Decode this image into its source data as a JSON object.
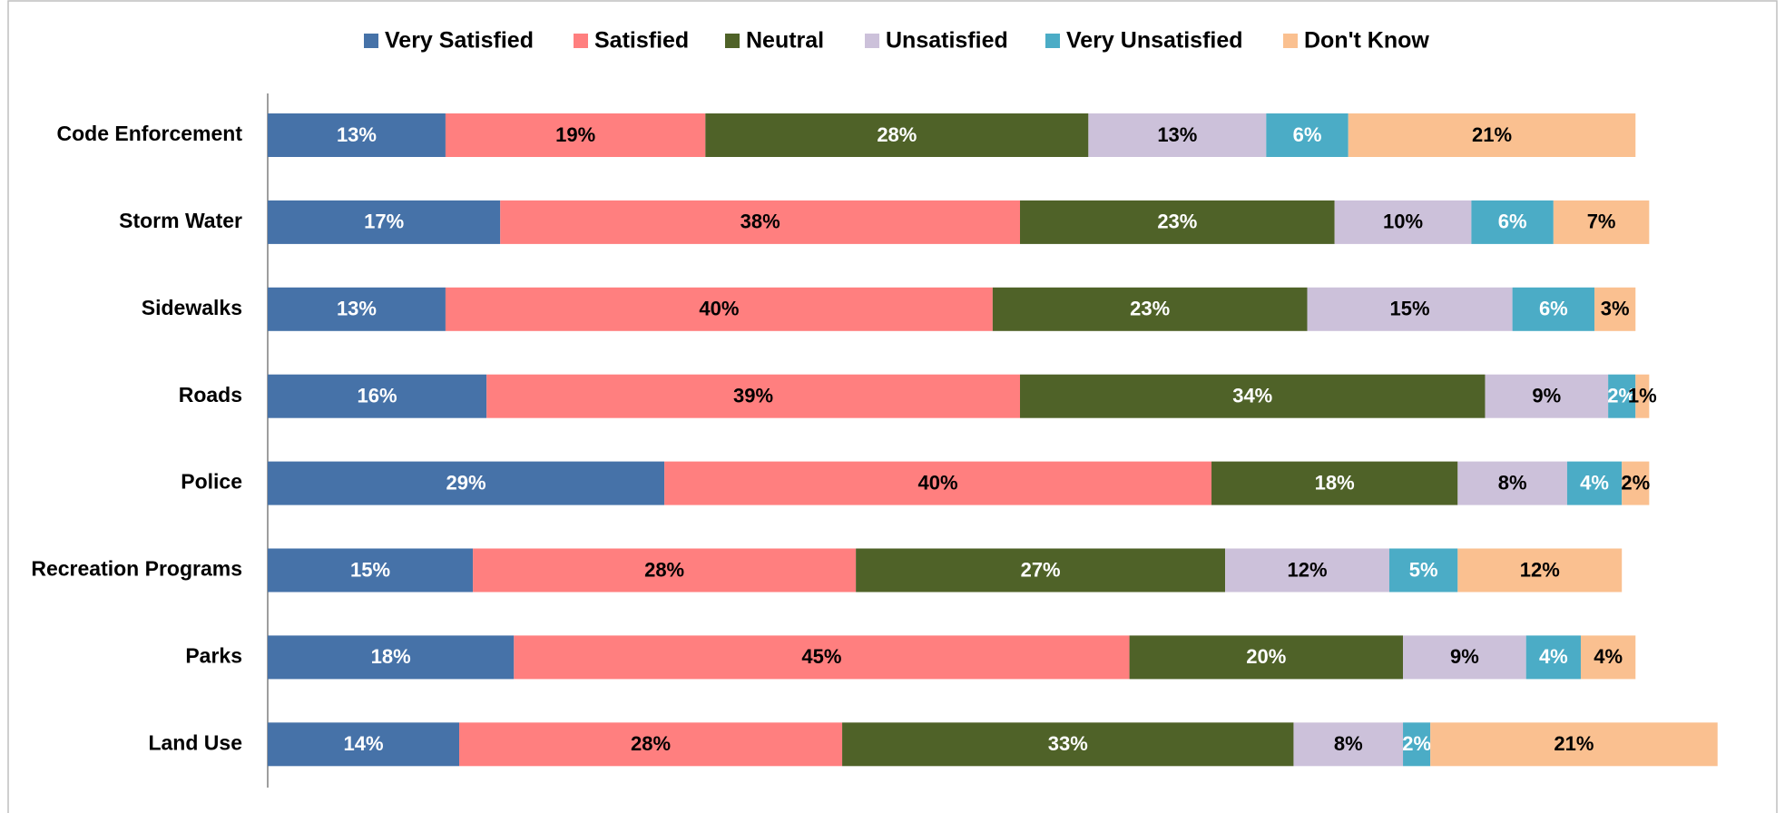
{
  "chart_data": {
    "type": "stacked_bar_horizontal",
    "categories": [
      "Code Enforcement",
      "Storm Water",
      "Sidewalks",
      "Roads",
      "Police",
      "Recreation Programs",
      "Parks",
      "Land Use"
    ],
    "series": [
      {
        "name": "Very Satisfied",
        "color": "#4672a8",
        "values": [
          13,
          17,
          13,
          16,
          29,
          15,
          18,
          14
        ],
        "value_labels": [
          "13%",
          "17%",
          "13%",
          "16%",
          "29%",
          "15%",
          "18%",
          "14%"
        ]
      },
      {
        "name": "Satisfied",
        "color": "#ff7f7f",
        "values": [
          19,
          38,
          40,
          39,
          40,
          28,
          45,
          28
        ],
        "value_labels": [
          "19%",
          "38%",
          "40%",
          "39%",
          "40%",
          "28%",
          "45%",
          "28%"
        ]
      },
      {
        "name": "Neutral",
        "color": "#4f6228",
        "values": [
          28,
          23,
          23,
          34,
          18,
          27,
          20,
          33
        ],
        "value_labels": [
          "28%",
          "23%",
          "23%",
          "34%",
          "18%",
          "27%",
          "20%",
          "33%"
        ]
      },
      {
        "name": "Unsatisfied",
        "color": "#ccc1da",
        "values": [
          13,
          10,
          15,
          9,
          8,
          12,
          9,
          8
        ],
        "value_labels": [
          "13%",
          "10%",
          "15%",
          "9%",
          "8%",
          "12%",
          "9%",
          "8%"
        ]
      },
      {
        "name": "Very Unsatisfied",
        "color": "#4bacc6",
        "values": [
          6,
          6,
          6,
          2,
          4,
          5,
          4,
          2
        ],
        "value_labels": [
          "6%",
          "6%",
          "6%",
          "2%",
          "4%",
          "5%",
          "4%",
          "2%"
        ]
      },
      {
        "name": "Don't Know",
        "color": "#fac090",
        "values": [
          21,
          7,
          3,
          1,
          2,
          12,
          4,
          21
        ],
        "value_labels": [
          "21%",
          "7%",
          "3%",
          "1%",
          "2%",
          "12%",
          "4%",
          "21%"
        ]
      }
    ],
    "xlim": [
      0,
      110
    ],
    "legend": "top"
  }
}
